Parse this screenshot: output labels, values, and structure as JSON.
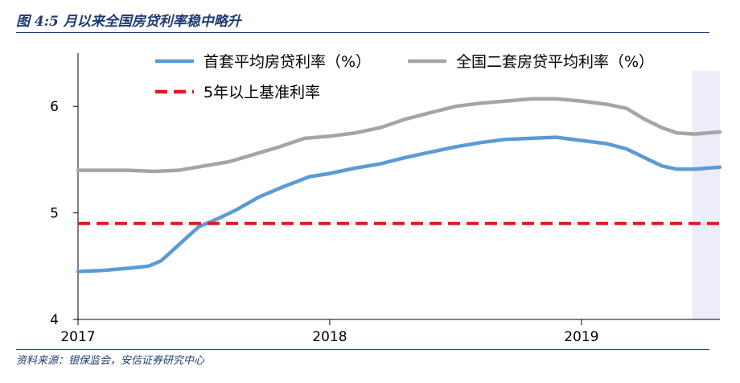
{
  "figure": {
    "title": "图 4:5 月以来全国房贷利率稳中略升",
    "source": "资料来源：银保监会，安信证券研究中心"
  },
  "colors": {
    "first_home": "#5b9bd5",
    "second_home": "#a5a5a5",
    "benchmark": "#e31a1c",
    "highlight": "#ecedf8",
    "frame": "#1f3a73"
  },
  "chart_data": {
    "type": "line",
    "ylim": [
      4,
      6.5
    ],
    "yticks": [
      4,
      5,
      6
    ],
    "xlim": [
      2017,
      2019.55
    ],
    "xticks": [
      2017,
      2018,
      2019
    ],
    "highlight_from_x": 2019.44,
    "legend_position": "top",
    "series": [
      {
        "key": "first_home",
        "name": "首套平均房贷利率（%）",
        "style": "solid",
        "points": [
          [
            2017.0,
            4.45
          ],
          [
            2017.1,
            4.46
          ],
          [
            2017.2,
            4.48
          ],
          [
            2017.28,
            4.5
          ],
          [
            2017.33,
            4.55
          ],
          [
            2017.4,
            4.7
          ],
          [
            2017.48,
            4.87
          ],
          [
            2017.56,
            4.95
          ],
          [
            2017.63,
            5.03
          ],
          [
            2017.72,
            5.15
          ],
          [
            2017.82,
            5.25
          ],
          [
            2017.92,
            5.34
          ],
          [
            2018.0,
            5.37
          ],
          [
            2018.1,
            5.42
          ],
          [
            2018.2,
            5.46
          ],
          [
            2018.3,
            5.52
          ],
          [
            2018.4,
            5.57
          ],
          [
            2018.5,
            5.62
          ],
          [
            2018.6,
            5.66
          ],
          [
            2018.7,
            5.69
          ],
          [
            2018.8,
            5.7
          ],
          [
            2018.9,
            5.71
          ],
          [
            2019.0,
            5.68
          ],
          [
            2019.1,
            5.65
          ],
          [
            2019.18,
            5.6
          ],
          [
            2019.25,
            5.52
          ],
          [
            2019.32,
            5.44
          ],
          [
            2019.38,
            5.41
          ],
          [
            2019.45,
            5.41
          ],
          [
            2019.55,
            5.43
          ]
        ]
      },
      {
        "key": "second_home",
        "name": "全国二套房贷平均利率（%）",
        "style": "solid",
        "points": [
          [
            2017.0,
            5.4
          ],
          [
            2017.1,
            5.4
          ],
          [
            2017.2,
            5.4
          ],
          [
            2017.3,
            5.39
          ],
          [
            2017.4,
            5.4
          ],
          [
            2017.5,
            5.44
          ],
          [
            2017.6,
            5.48
          ],
          [
            2017.7,
            5.55
          ],
          [
            2017.8,
            5.62
          ],
          [
            2017.9,
            5.7
          ],
          [
            2018.0,
            5.72
          ],
          [
            2018.1,
            5.75
          ],
          [
            2018.2,
            5.8
          ],
          [
            2018.3,
            5.88
          ],
          [
            2018.4,
            5.94
          ],
          [
            2018.5,
            6.0
          ],
          [
            2018.6,
            6.03
          ],
          [
            2018.7,
            6.05
          ],
          [
            2018.8,
            6.07
          ],
          [
            2018.9,
            6.07
          ],
          [
            2019.0,
            6.05
          ],
          [
            2019.1,
            6.02
          ],
          [
            2019.18,
            5.98
          ],
          [
            2019.25,
            5.88
          ],
          [
            2019.32,
            5.8
          ],
          [
            2019.38,
            5.75
          ],
          [
            2019.45,
            5.74
          ],
          [
            2019.55,
            5.76
          ]
        ]
      },
      {
        "key": "benchmark",
        "name": "5年以上基准利率",
        "style": "dashed",
        "points": [
          [
            2017.0,
            4.9
          ],
          [
            2019.55,
            4.9
          ]
        ]
      }
    ]
  }
}
